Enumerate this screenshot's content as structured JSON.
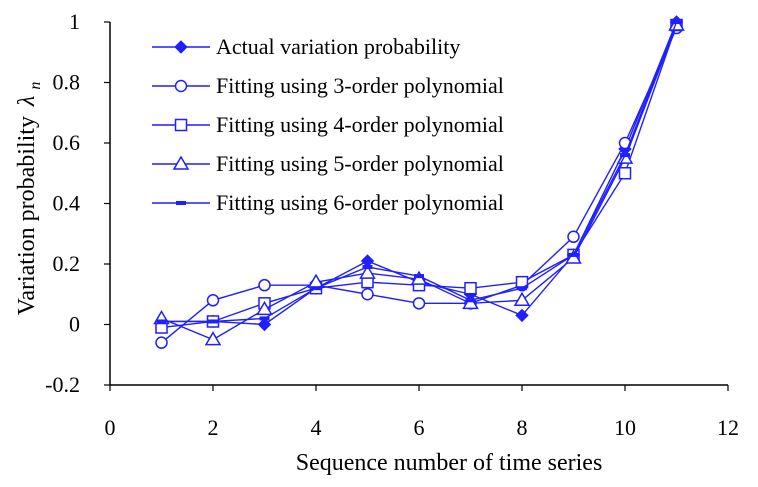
{
  "chart_data": {
    "type": "line",
    "title": "",
    "xlabel": "Sequence number of time series",
    "ylabel": "Variation probability",
    "ylabel_symbol": "λ",
    "ylabel_symbol_subscript": "n",
    "xlim": [
      0,
      12
    ],
    "ylim": [
      -0.2,
      1
    ],
    "x_ticks": [
      0,
      2,
      4,
      6,
      8,
      10,
      12
    ],
    "y_ticks": [
      -0.2,
      0,
      0.2,
      0.4,
      0.6,
      0.8,
      1
    ],
    "x_tick_labels": [
      "0",
      "2",
      "4",
      "6",
      "8",
      "10",
      "12"
    ],
    "y_tick_labels": [
      "-0.2",
      "0",
      "0.2",
      "0.4",
      "0.6",
      "0.8",
      "1"
    ],
    "grid": false,
    "legend_position": "top-left",
    "x": [
      1,
      2,
      3,
      4,
      5,
      6,
      7,
      8,
      9,
      10,
      11
    ],
    "series_color": "#1f1fff",
    "series": [
      {
        "name": "Actual variation probability",
        "marker": "filled-diamond",
        "values": [
          0.01,
          0.01,
          0.0,
          0.12,
          0.21,
          0.14,
          0.1,
          0.03,
          0.23,
          0.58,
          1.0
        ]
      },
      {
        "name": "Fitting using 3-order polynomial",
        "marker": "open-circle",
        "values": [
          -0.06,
          0.08,
          0.13,
          0.13,
          0.1,
          0.07,
          0.07,
          0.13,
          0.29,
          0.6,
          0.98
        ]
      },
      {
        "name": "Fitting using 4-order polynomial",
        "marker": "open-square",
        "values": [
          -0.01,
          0.01,
          0.07,
          0.12,
          0.14,
          0.13,
          0.12,
          0.14,
          0.23,
          0.5,
          0.99
        ]
      },
      {
        "name": "Fitting using 5-order polynomial",
        "marker": "open-triangle",
        "values": [
          0.02,
          -0.05,
          0.05,
          0.14,
          0.17,
          0.15,
          0.07,
          0.08,
          0.22,
          0.55,
          0.99
        ]
      },
      {
        "name": "Fitting using 6-order polynomial",
        "marker": "dash",
        "values": [
          0.01,
          0.01,
          0.02,
          0.12,
          0.19,
          0.16,
          0.08,
          0.12,
          0.23,
          0.56,
          1.0
        ]
      }
    ]
  }
}
